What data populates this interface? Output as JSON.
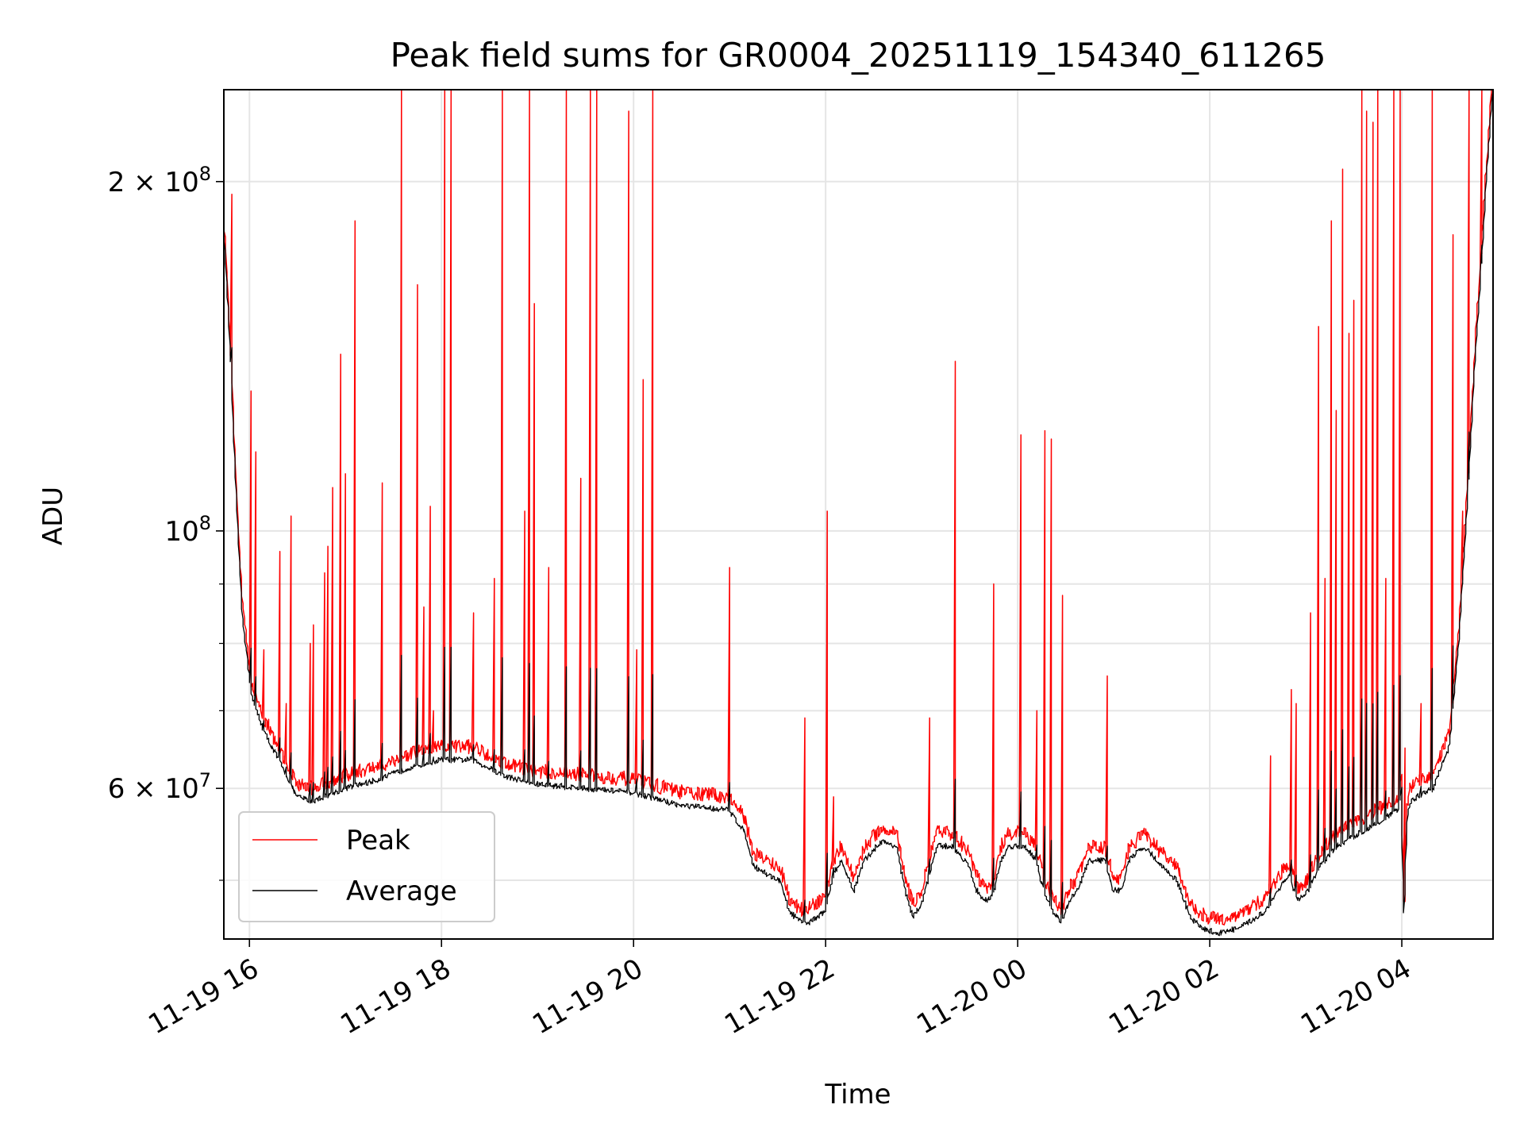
{
  "chart_data": {
    "type": "line",
    "title": "Peak field sums for GR0004_20251119_154340_611265",
    "xlabel": "Time",
    "ylabel": "ADU",
    "yscale": "log",
    "grid": true,
    "legend_position": "lower-left",
    "colors": {
      "Peak": "#ff0000",
      "Average": "#000000"
    },
    "xlim": [
      "2025-11-19T15:44",
      "2025-11-20T04:57"
    ],
    "ylim": [
      44500000,
      240000000
    ],
    "x_ticks": [
      "11-19 16",
      "11-19 18",
      "11-19 20",
      "11-19 22",
      "11-20 00",
      "11-20 02",
      "11-20 04"
    ],
    "y_ticks": [
      {
        "value": 200000000,
        "mantissa": "2",
        "exponent": "8"
      },
      {
        "value": 100000000,
        "mantissa": "",
        "exponent": "8"
      },
      {
        "value": 60000000,
        "mantissa": "6",
        "exponent": "7"
      }
    ],
    "series": [
      {
        "name": "Peak",
        "x": [],
        "y": []
      },
      {
        "name": "Average",
        "x": [],
        "y": []
      }
    ],
    "baseline": {
      "x": [
        "2025-11-19T15:44",
        "2025-11-19T15:48",
        "2025-11-19T15:52",
        "2025-11-19T15:56",
        "2025-11-19T16:02",
        "2025-11-19T16:10",
        "2025-11-19T16:20",
        "2025-11-19T16:30",
        "2025-11-19T16:40",
        "2025-11-19T17:00",
        "2025-11-19T17:20",
        "2025-11-19T17:40",
        "2025-11-19T18:00",
        "2025-11-19T18:20",
        "2025-11-19T18:40",
        "2025-11-19T19:00",
        "2025-11-19T19:30",
        "2025-11-19T20:00",
        "2025-11-19T20:30",
        "2025-11-19T21:00",
        "2025-11-19T21:10",
        "2025-11-19T21:15",
        "2025-11-19T21:25",
        "2025-11-19T21:32",
        "2025-11-19T21:38",
        "2025-11-19T21:45",
        "2025-11-19T21:50",
        "2025-11-19T21:55",
        "2025-11-19T22:00",
        "2025-11-19T22:05",
        "2025-11-19T22:10",
        "2025-11-19T22:18",
        "2025-11-19T22:25",
        "2025-11-19T22:35",
        "2025-11-19T22:45",
        "2025-11-19T22:50",
        "2025-11-19T22:55",
        "2025-11-19T23:00",
        "2025-11-19T23:05",
        "2025-11-19T23:10",
        "2025-11-19T23:20",
        "2025-11-19T23:30",
        "2025-11-19T23:35",
        "2025-11-19T23:40",
        "2025-11-19T23:45",
        "2025-11-19T23:50",
        "2025-11-19T23:55",
        "2025-11-20T00:05",
        "2025-11-20T00:12",
        "2025-11-20T00:18",
        "2025-11-20T00:23",
        "2025-11-20T00:28",
        "2025-11-20T00:33",
        "2025-11-20T00:38",
        "2025-11-20T00:45",
        "2025-11-20T00:55",
        "2025-11-20T01:00",
        "2025-11-20T01:05",
        "2025-11-20T01:10",
        "2025-11-20T01:20",
        "2025-11-20T01:30",
        "2025-11-20T01:40",
        "2025-11-20T01:48",
        "2025-11-20T01:55",
        "2025-11-20T02:05",
        "2025-11-20T02:20",
        "2025-11-20T02:35",
        "2025-11-20T02:45",
        "2025-11-20T02:50",
        "2025-11-20T02:55",
        "2025-11-20T03:00",
        "2025-11-20T03:10",
        "2025-11-20T03:20",
        "2025-11-20T03:40",
        "2025-11-20T03:58",
        "2025-11-20T04:00",
        "2025-11-20T04:02",
        "2025-11-20T04:04",
        "2025-11-20T04:06",
        "2025-11-20T04:10",
        "2025-11-20T04:20",
        "2025-11-20T04:30",
        "2025-11-20T04:36",
        "2025-11-20T04:42",
        "2025-11-20T04:46",
        "2025-11-20T04:50",
        "2025-11-20T04:53",
        "2025-11-20T04:56",
        "2025-11-20T04:57"
      ],
      "y": [
        190000000,
        150000000,
        110000000,
        85000000,
        72000000,
        67000000,
        63000000,
        59000000,
        58500000,
        60000000,
        61000000,
        62500000,
        63500000,
        63500000,
        61500000,
        60500000,
        60000000,
        59500000,
        58000000,
        57500000,
        55000000,
        51500000,
        50500000,
        50000000,
        47000000,
        46000000,
        46000000,
        46500000,
        47000000,
        50500000,
        52000000,
        49000000,
        52000000,
        54000000,
        53500000,
        49000000,
        46500000,
        47500000,
        50500000,
        53500000,
        53500000,
        51500000,
        49000000,
        48000000,
        48500000,
        52000000,
        53500000,
        53500000,
        52000000,
        48500000,
        47000000,
        46000000,
        48000000,
        49000000,
        52000000,
        52000000,
        49000000,
        49000000,
        52000000,
        53500000,
        51500000,
        50000000,
        46500000,
        45500000,
        45000000,
        45500000,
        47000000,
        49500000,
        50500000,
        48000000,
        48500000,
        51500000,
        53500000,
        55500000,
        57500000,
        60000000,
        47000000,
        56500000,
        58500000,
        59000000,
        60000000,
        65000000,
        80000000,
        110000000,
        140000000,
        170000000,
        200000000,
        230000000,
        240000000
      ]
    },
    "spikes": [
      {
        "x": "2025-11-19T15:49",
        "y": 195000000
      },
      {
        "x": "2025-11-19T16:01",
        "y": 132000000
      },
      {
        "x": "2025-11-19T16:04",
        "y": 117000000
      },
      {
        "x": "2025-11-19T16:09",
        "y": 79000000
      },
      {
        "x": "2025-11-19T16:19",
        "y": 96000000
      },
      {
        "x": "2025-11-19T16:23",
        "y": 71000000
      },
      {
        "x": "2025-11-19T16:26",
        "y": 103000000
      },
      {
        "x": "2025-11-19T16:38",
        "y": 80000000
      },
      {
        "x": "2025-11-19T16:40",
        "y": 83000000
      },
      {
        "x": "2025-11-19T16:47",
        "y": 92000000
      },
      {
        "x": "2025-11-19T16:49",
        "y": 97000000
      },
      {
        "x": "2025-11-19T16:52",
        "y": 109000000
      },
      {
        "x": "2025-11-19T16:57",
        "y": 142000000
      },
      {
        "x": "2025-11-19T17:00",
        "y": 112000000
      },
      {
        "x": "2025-11-19T17:06",
        "y": 185000000
      },
      {
        "x": "2025-11-19T17:23",
        "y": 110000000
      },
      {
        "x": "2025-11-19T17:35",
        "y": 240000000
      },
      {
        "x": "2025-11-19T17:45",
        "y": 163000000
      },
      {
        "x": "2025-11-19T17:49",
        "y": 86000000
      },
      {
        "x": "2025-11-19T17:53",
        "y": 105000000
      },
      {
        "x": "2025-11-19T17:55",
        "y": 70000000
      },
      {
        "x": "2025-11-19T18:02",
        "y": 240000000
      },
      {
        "x": "2025-11-19T18:06",
        "y": 240000000
      },
      {
        "x": "2025-11-19T18:20",
        "y": 85000000
      },
      {
        "x": "2025-11-19T18:33",
        "y": 91000000
      },
      {
        "x": "2025-11-19T18:38",
        "y": 240000000
      },
      {
        "x": "2025-11-19T18:52",
        "y": 104000000
      },
      {
        "x": "2025-11-19T18:55",
        "y": 240000000
      },
      {
        "x": "2025-11-19T18:58",
        "y": 157000000
      },
      {
        "x": "2025-11-19T19:07",
        "y": 93000000
      },
      {
        "x": "2025-11-19T19:18",
        "y": 240000000
      },
      {
        "x": "2025-11-19T19:27",
        "y": 111000000
      },
      {
        "x": "2025-11-19T19:33",
        "y": 240000000
      },
      {
        "x": "2025-11-19T19:37",
        "y": 240000000
      },
      {
        "x": "2025-11-19T19:57",
        "y": 230000000
      },
      {
        "x": "2025-11-19T20:02",
        "y": 79000000
      },
      {
        "x": "2025-11-19T20:06",
        "y": 135000000
      },
      {
        "x": "2025-11-19T20:12",
        "y": 240000000
      },
      {
        "x": "2025-11-19T21:00",
        "y": 93000000
      },
      {
        "x": "2025-11-19T21:47",
        "y": 69000000
      },
      {
        "x": "2025-11-19T22:01",
        "y": 104000000
      },
      {
        "x": "2025-11-19T22:05",
        "y": 59000000
      },
      {
        "x": "2025-11-19T23:05",
        "y": 69000000
      },
      {
        "x": "2025-11-19T23:21",
        "y": 140000000
      },
      {
        "x": "2025-11-19T23:45",
        "y": 90000000
      },
      {
        "x": "2025-11-20T00:02",
        "y": 121000000
      },
      {
        "x": "2025-11-20T00:12",
        "y": 70000000
      },
      {
        "x": "2025-11-20T00:17",
        "y": 122000000
      },
      {
        "x": "2025-11-20T00:21",
        "y": 120000000
      },
      {
        "x": "2025-11-20T00:28",
        "y": 88000000
      },
      {
        "x": "2025-11-20T00:56",
        "y": 75000000
      },
      {
        "x": "2025-11-20T02:38",
        "y": 64000000
      },
      {
        "x": "2025-11-20T02:51",
        "y": 73000000
      },
      {
        "x": "2025-11-20T02:54",
        "y": 71000000
      },
      {
        "x": "2025-11-20T03:03",
        "y": 85000000
      },
      {
        "x": "2025-11-20T03:08",
        "y": 150000000
      },
      {
        "x": "2025-11-20T03:12",
        "y": 91000000
      },
      {
        "x": "2025-11-20T03:16",
        "y": 185000000
      },
      {
        "x": "2025-11-20T03:19",
        "y": 127000000
      },
      {
        "x": "2025-11-20T03:23",
        "y": 205000000
      },
      {
        "x": "2025-11-20T03:27",
        "y": 148000000
      },
      {
        "x": "2025-11-20T03:30",
        "y": 158000000
      },
      {
        "x": "2025-11-20T03:35",
        "y": 240000000
      },
      {
        "x": "2025-11-20T03:38",
        "y": 230000000
      },
      {
        "x": "2025-11-20T03:42",
        "y": 225000000
      },
      {
        "x": "2025-11-20T03:45",
        "y": 240000000
      },
      {
        "x": "2025-11-20T03:50",
        "y": 91000000
      },
      {
        "x": "2025-11-20T03:55",
        "y": 240000000
      },
      {
        "x": "2025-11-20T03:59",
        "y": 240000000
      },
      {
        "x": "2025-11-20T04:02",
        "y": 65000000
      },
      {
        "x": "2025-11-20T04:12",
        "y": 71000000
      },
      {
        "x": "2025-11-20T04:19",
        "y": 240000000
      },
      {
        "x": "2025-11-20T04:32",
        "y": 180000000
      },
      {
        "x": "2025-11-20T04:38",
        "y": 104000000
      },
      {
        "x": "2025-11-20T04:42",
        "y": 240000000
      },
      {
        "x": "2025-11-20T04:50",
        "y": 240000000
      }
    ]
  }
}
